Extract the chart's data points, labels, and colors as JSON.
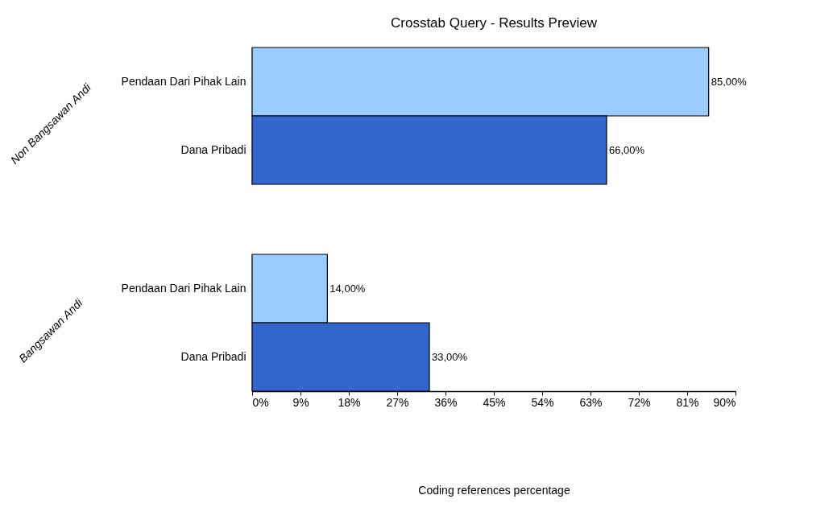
{
  "chart_data": [
    {
      "type": "bar",
      "orientation": "horizontal",
      "title": "Crosstab Query - Results Preview",
      "ylabel": "Non Bangsawan Andi",
      "categories": [
        "Pendaan Dari Pihak Lain",
        "Dana Pribadi"
      ],
      "values": [
        85,
        66
      ],
      "colors": [
        "#99ccff",
        "#3366cc"
      ],
      "value_labels": [
        "85,00%",
        "66,00%"
      ],
      "xlim": [
        0,
        90
      ],
      "tick_labels": "y",
      "grid": false,
      "legend": false
    },
    {
      "type": "bar",
      "orientation": "horizontal",
      "ylabel": "Bangsawan Andi",
      "xlabel": "Coding references percentage",
      "categories": [
        "Pendaan Dari Pihak Lain",
        "Dana Pribadi"
      ],
      "values": [
        14,
        33
      ],
      "colors": [
        "#99ccff",
        "#3366cc"
      ],
      "value_labels": [
        "14,00%",
        "33,00%"
      ],
      "xlim": [
        0,
        90
      ],
      "xticks": [
        {
          "value": 0,
          "label": "0%"
        },
        {
          "value": 9,
          "label": "9%"
        },
        {
          "value": 18,
          "label": "18%"
        },
        {
          "value": 27,
          "label": "27%"
        },
        {
          "value": 36,
          "label": "36%"
        },
        {
          "value": 45,
          "label": "45%"
        },
        {
          "value": 54,
          "label": "54%"
        },
        {
          "value": 63,
          "label": "63%"
        },
        {
          "value": 72,
          "label": "72%"
        },
        {
          "value": 81,
          "label": "81%"
        },
        {
          "value": 90,
          "label": "90%"
        }
      ],
      "grid": false,
      "legend": false
    }
  ]
}
